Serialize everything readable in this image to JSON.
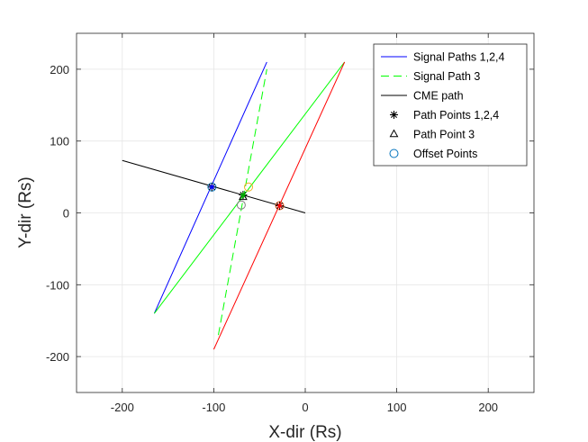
{
  "chart_data": {
    "type": "line",
    "xlabel": "X-dir (Rs)",
    "ylabel": "Y-dir (Rs)",
    "xlim": [
      -250,
      250
    ],
    "ylim": [
      -250,
      250
    ],
    "xticks": [
      -200,
      -100,
      0,
      100,
      200
    ],
    "yticks": [
      -200,
      -100,
      0,
      100,
      200
    ],
    "grid": true,
    "legend_position": "top-right",
    "legend": [
      {
        "label": "Signal Paths 1,2,4",
        "style": "solid",
        "color": "#0000ff",
        "marker": "none"
      },
      {
        "label": "Signal Path 3",
        "style": "dashed",
        "color": "#00ff00",
        "marker": "none"
      },
      {
        "label": "CME path",
        "style": "solid",
        "color": "#000000",
        "marker": "none"
      },
      {
        "label": "Path Points 1,2,4",
        "style": "none",
        "color": "#000000",
        "marker": "asterisk"
      },
      {
        "label": "Path Point 3",
        "style": "none",
        "color": "#000000",
        "marker": "triangle"
      },
      {
        "label": "Offset Points",
        "style": "none",
        "color": "#0072bd",
        "marker": "circle"
      }
    ],
    "series": [
      {
        "color": "#0000ff",
        "dash": false,
        "x": [
          -165,
          -42
        ],
        "y": [
          -140,
          210
        ]
      },
      {
        "color": "#00ff00",
        "dash": false,
        "x": [
          -165,
          43
        ],
        "y": [
          -140,
          210
        ]
      },
      {
        "color": "#ff0000",
        "dash": false,
        "x": [
          -100,
          43
        ],
        "y": [
          -190,
          210
        ]
      },
      {
        "color": "#00ff00",
        "dash": true,
        "x": [
          -95,
          -42
        ],
        "y": [
          -170,
          200
        ]
      },
      {
        "color": "#000000",
        "dash": false,
        "x": [
          -200,
          0
        ],
        "y": [
          73,
          0
        ]
      }
    ],
    "path_points": [
      {
        "x": -102,
        "y": 36,
        "color": "#0000ff",
        "marker": "asterisk"
      },
      {
        "x": -68,
        "y": 25,
        "color": "#00aa00",
        "marker": "asterisk"
      },
      {
        "x": -28,
        "y": 10,
        "color": "#ff0000",
        "marker": "asterisk"
      }
    ],
    "triangle_points": [
      {
        "x": -68,
        "y": 22,
        "color": "#000000"
      }
    ],
    "offset_points": [
      {
        "x": -102,
        "y": 36,
        "color": "#0072bd"
      },
      {
        "x": -62,
        "y": 36,
        "color": "#edb120"
      },
      {
        "x": -70,
        "y": 11,
        "color": "#7e7e7e"
      },
      {
        "x": -28,
        "y": 10,
        "color": "#d95319"
      }
    ]
  }
}
